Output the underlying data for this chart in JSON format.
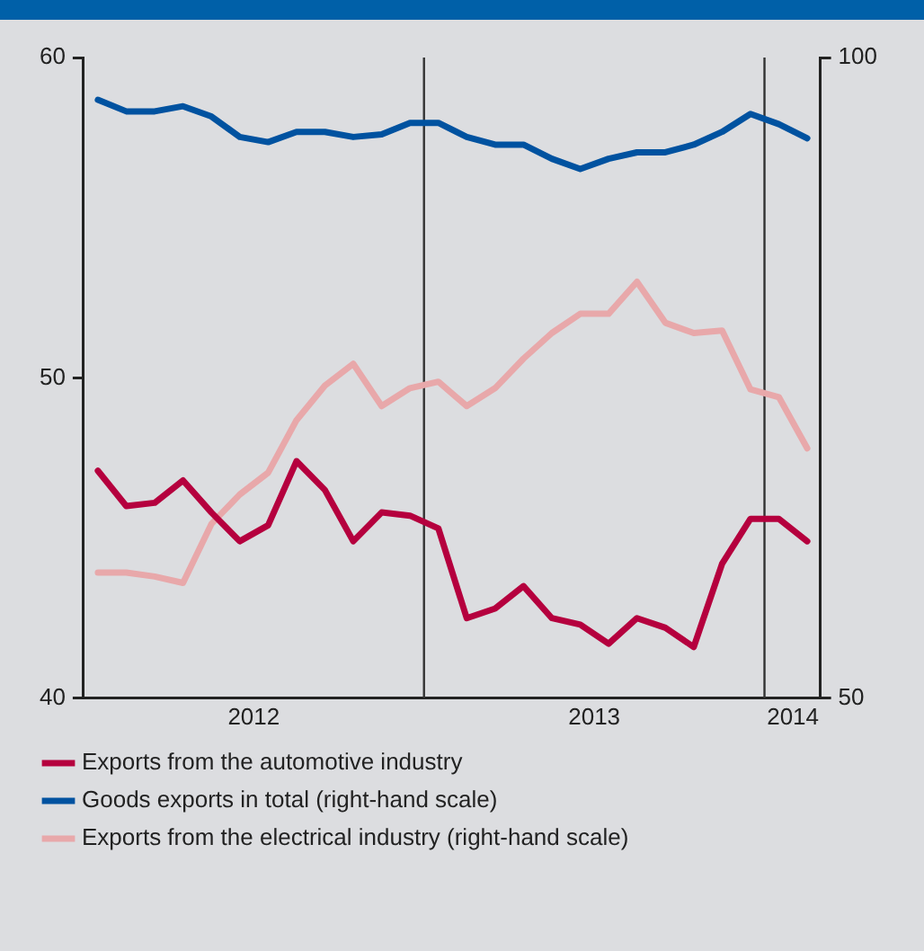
{
  "chart_data": {
    "type": "line",
    "x": [
      "2012-01",
      "2012-02",
      "2012-03",
      "2012-04",
      "2012-05",
      "2012-06",
      "2012-07",
      "2012-08",
      "2012-09",
      "2012-10",
      "2012-11",
      "2012-12",
      "2013-01",
      "2013-02",
      "2013-03",
      "2013-04",
      "2013-05",
      "2013-06",
      "2013-07",
      "2013-08",
      "2013-09",
      "2013-10",
      "2013-11",
      "2013-12",
      "2014-01",
      "2014-02"
    ],
    "series": [
      {
        "name": "Exports from the automotive industry",
        "color": "#b5003e",
        "values": [
          47.1,
          46.0,
          46.1,
          46.8,
          45.8,
          44.9,
          45.4,
          47.4,
          46.5,
          44.9,
          45.8,
          45.7,
          45.3,
          42.5,
          42.8,
          43.5,
          42.5,
          42.3,
          41.7,
          42.5,
          42.2,
          41.6,
          44.2,
          45.6,
          45.6,
          44.9
        ]
      },
      {
        "name": "Goods exports in total (right-hand scale)",
        "color": "#0052a0",
        "axis": "y2",
        "values": [
          96.7,
          95.8,
          95.8,
          96.2,
          95.4,
          93.8,
          93.4,
          94.2,
          94.2,
          93.8,
          94.0,
          94.9,
          94.9,
          93.8,
          93.2,
          93.2,
          92.1,
          91.3,
          92.1,
          92.6,
          92.6,
          93.2,
          94.2,
          95.6,
          94.8,
          93.7
        ]
      },
      {
        "name": "Exports from the electrical industry (right-hand scale)",
        "color": "#e8a8aa",
        "axis": "y2",
        "values": [
          59.8,
          59.8,
          59.5,
          59.0,
          63.6,
          65.9,
          67.6,
          71.7,
          74.4,
          76.1,
          72.8,
          74.2,
          74.7,
          72.8,
          74.2,
          76.5,
          78.5,
          80.0,
          80.0,
          82.5,
          79.3,
          78.5,
          78.7,
          74.1,
          73.5,
          69.5
        ]
      }
    ],
    "xlim": [
      "2011-12-16",
      "2014-02-15"
    ],
    "xticks": [
      {
        "value": "2012-06-16",
        "label": "2012"
      },
      {
        "value": "2013-06-16",
        "label": "2013"
      },
      {
        "value": "2014-01-16",
        "label": "2014"
      }
    ],
    "ylim": [
      40,
      60
    ],
    "yticks": [
      40,
      50,
      60
    ],
    "y2lim": [
      50,
      100
    ],
    "y2ticks": [
      50,
      100
    ],
    "ref_lines": [
      {
        "axis": "x",
        "value": "2012-12-16",
        "color": "#333333"
      },
      {
        "axis": "x",
        "value": "2013-12-16",
        "color": "#333333"
      }
    ],
    "grid": false,
    "legend": "bottom",
    "marker": "none",
    "line_style": "solid"
  }
}
